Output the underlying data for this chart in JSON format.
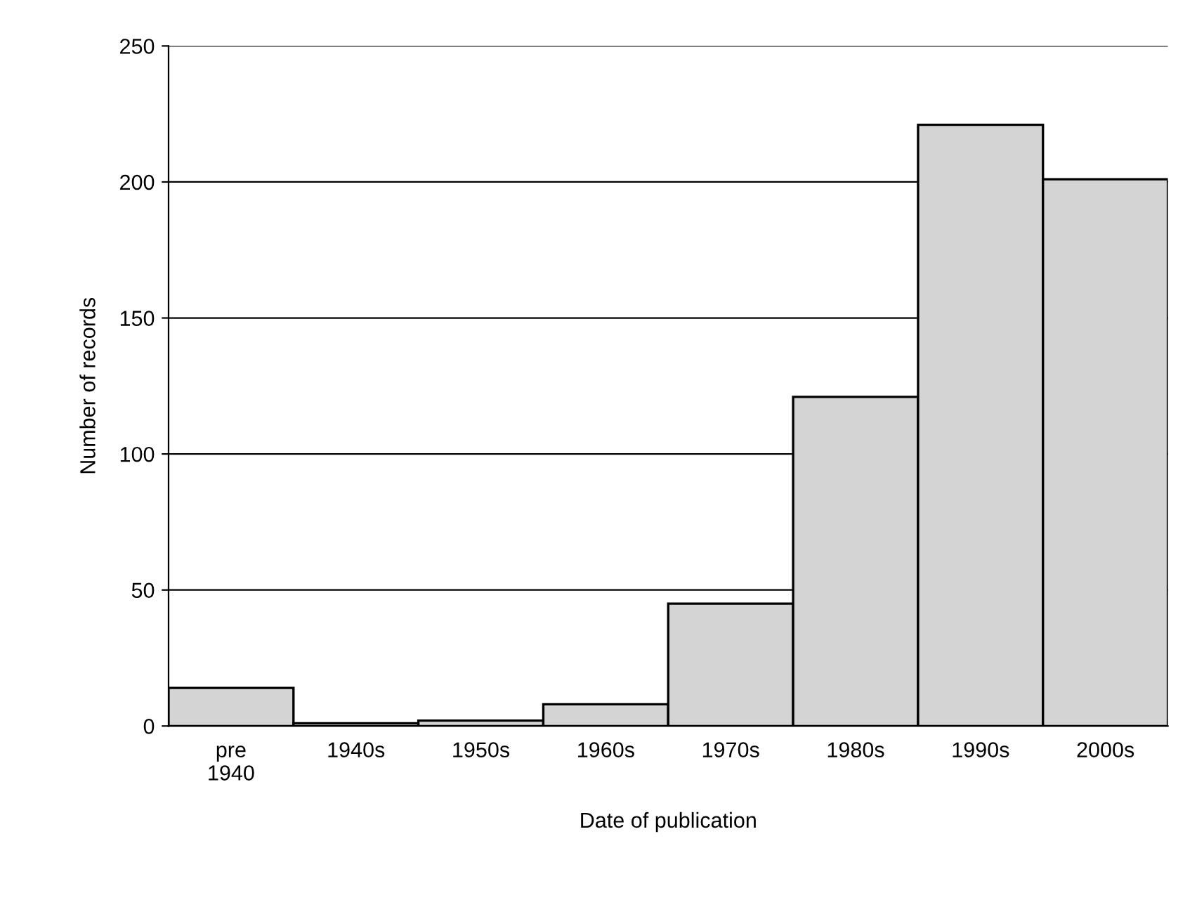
{
  "chart_data": {
    "type": "bar",
    "xlabel": "Date of publication",
    "ylabel": "Number of records",
    "categories": [
      "pre\n1940",
      "1940s",
      "1950s",
      "1960s",
      "1970s",
      "1980s",
      "1990s",
      "2000s"
    ],
    "values": [
      14,
      1,
      2,
      8,
      45,
      121,
      221,
      201
    ],
    "color": "#d4d4d4",
    "ylim": [
      0,
      250
    ],
    "yticks": [
      0,
      50,
      100,
      150,
      200,
      250
    ],
    "grid": "y"
  }
}
